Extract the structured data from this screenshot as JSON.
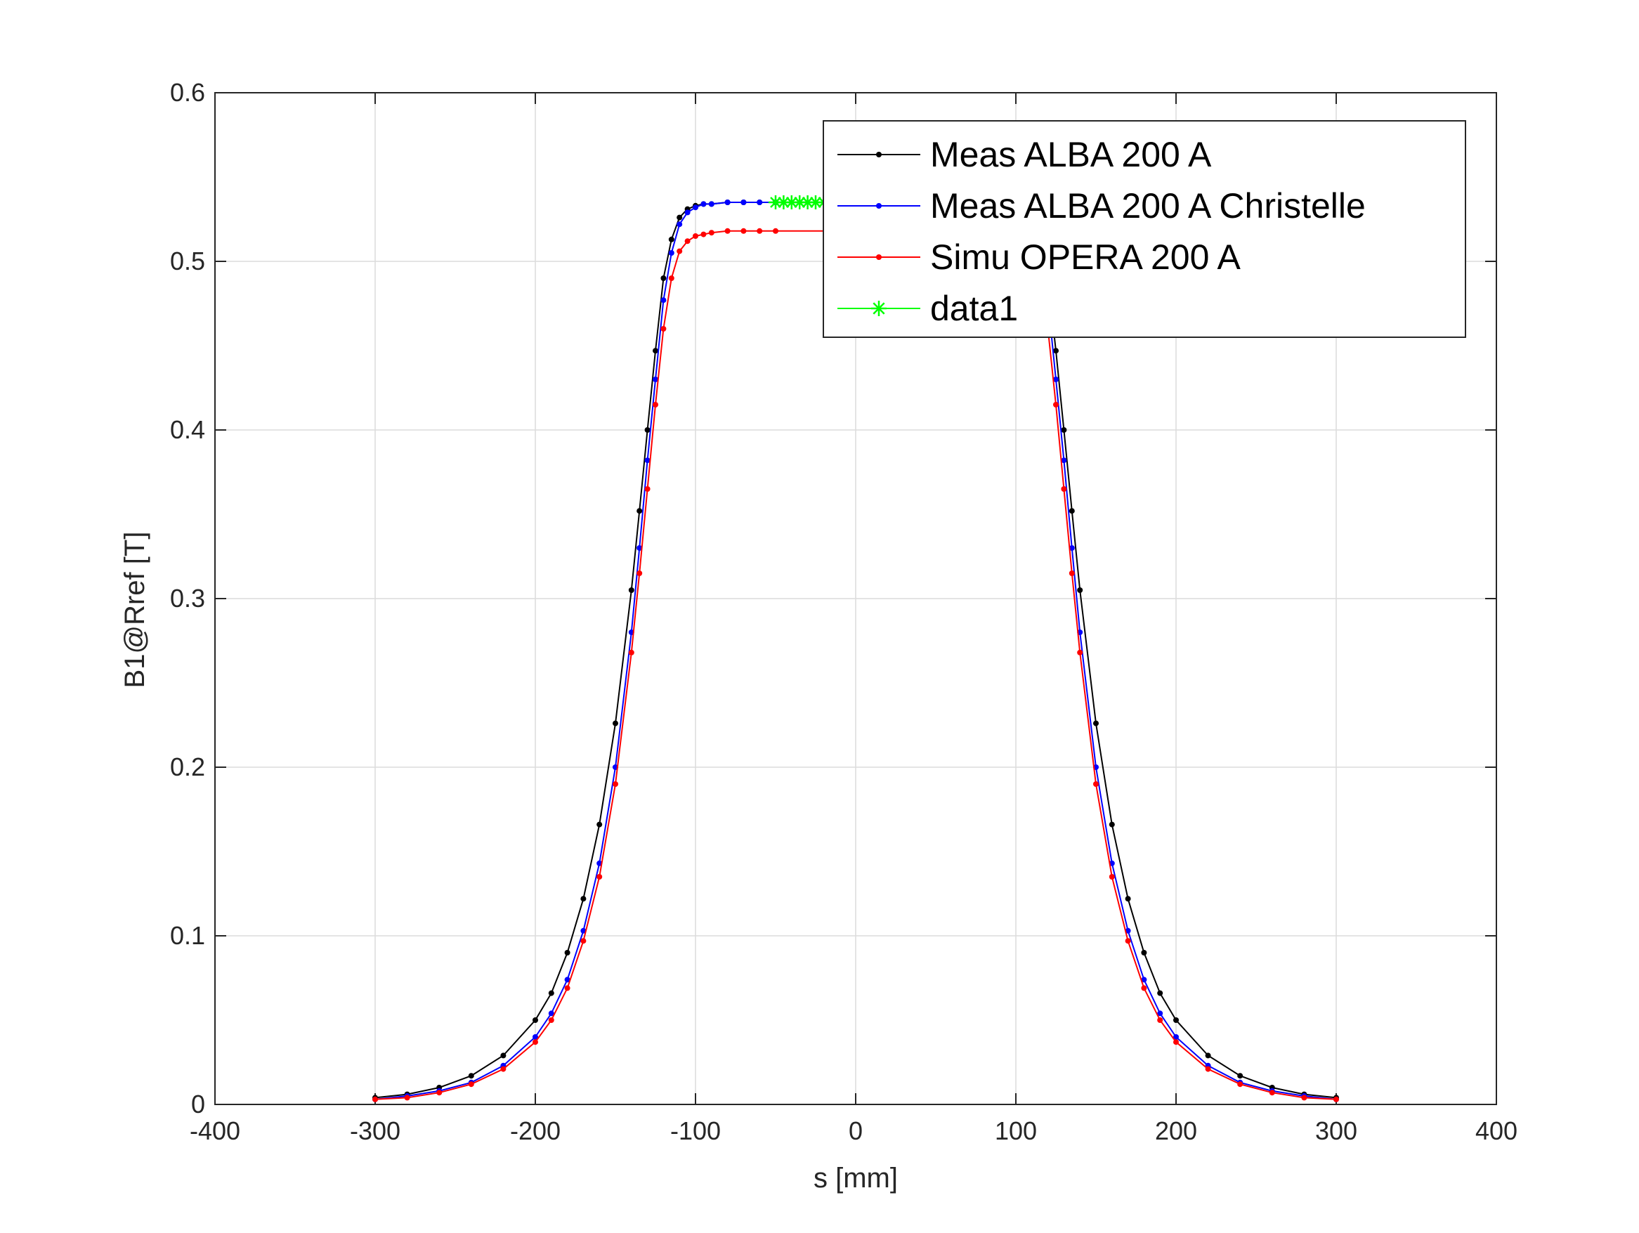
{
  "chart_data": {
    "type": "line",
    "title": "",
    "xlabel": "s [mm]",
    "ylabel": "B1@Rref [T]",
    "xlim": [
      -400,
      400
    ],
    "ylim": [
      0,
      0.6
    ],
    "xticks": [
      -400,
      -300,
      -200,
      -100,
      0,
      100,
      200,
      300,
      400
    ],
    "yticks": [
      0,
      0.1,
      0.2,
      0.3,
      0.4,
      0.5,
      0.6
    ],
    "xtick_labels": [
      "-400",
      "-300",
      "-200",
      "-100",
      "0",
      "100",
      "200",
      "300",
      "400"
    ],
    "ytick_labels": [
      "0",
      "0.1",
      "0.2",
      "0.3",
      "0.4",
      "0.5",
      "0.6"
    ],
    "grid": true,
    "legend_position": "top-right",
    "series": [
      {
        "name": "Meas ALBA 200 A",
        "color": "#000000",
        "marker": "dot",
        "x": [
          -300,
          -280,
          -260,
          -240,
          -220,
          -200,
          -190,
          -180,
          -170,
          -160,
          -150,
          -140,
          -135,
          -130,
          -125,
          -120,
          -115,
          -110,
          -105,
          -100,
          -95,
          -90,
          -80,
          -70,
          -60,
          -50,
          50,
          60,
          70,
          80,
          90,
          95,
          100,
          105,
          110,
          115,
          120,
          125,
          130,
          135,
          140,
          150,
          160,
          170,
          180,
          190,
          200,
          220,
          240,
          260,
          280,
          300
        ],
        "y": [
          0.004,
          0.006,
          0.01,
          0.017,
          0.029,
          0.05,
          0.066,
          0.09,
          0.122,
          0.166,
          0.226,
          0.305,
          0.352,
          0.4,
          0.447,
          0.49,
          0.513,
          0.526,
          0.531,
          0.533,
          0.534,
          0.534,
          0.535,
          0.535,
          0.535,
          0.535,
          0.535,
          0.535,
          0.535,
          0.535,
          0.534,
          0.534,
          0.533,
          0.531,
          0.526,
          0.513,
          0.49,
          0.447,
          0.4,
          0.352,
          0.305,
          0.226,
          0.166,
          0.122,
          0.09,
          0.066,
          0.05,
          0.029,
          0.017,
          0.01,
          0.006,
          0.004
        ]
      },
      {
        "name": "Meas ALBA 200 A Christelle",
        "color": "#0000ff",
        "marker": "dot",
        "x": [
          -300,
          -280,
          -260,
          -240,
          -220,
          -200,
          -190,
          -180,
          -170,
          -160,
          -150,
          -140,
          -135,
          -130,
          -125,
          -120,
          -115,
          -110,
          -105,
          -100,
          -95,
          -90,
          -80,
          -70,
          -60,
          -50,
          50,
          60,
          70,
          80,
          90,
          95,
          100,
          105,
          110,
          115,
          120,
          125,
          130,
          135,
          140,
          150,
          160,
          170,
          180,
          190,
          200,
          220,
          240,
          260,
          280,
          300
        ],
        "y": [
          0.003,
          0.005,
          0.008,
          0.013,
          0.023,
          0.04,
          0.054,
          0.074,
          0.103,
          0.143,
          0.2,
          0.28,
          0.33,
          0.382,
          0.43,
          0.477,
          0.505,
          0.522,
          0.529,
          0.532,
          0.534,
          0.534,
          0.535,
          0.535,
          0.535,
          0.535,
          0.535,
          0.535,
          0.535,
          0.535,
          0.534,
          0.534,
          0.532,
          0.529,
          0.522,
          0.505,
          0.477,
          0.43,
          0.382,
          0.33,
          0.28,
          0.2,
          0.143,
          0.103,
          0.074,
          0.054,
          0.04,
          0.023,
          0.013,
          0.008,
          0.005,
          0.003
        ]
      },
      {
        "name": "Simu OPERA 200 A",
        "color": "#ff0000",
        "marker": "dot",
        "x": [
          -300,
          -280,
          -260,
          -240,
          -220,
          -200,
          -190,
          -180,
          -170,
          -160,
          -150,
          -140,
          -135,
          -130,
          -125,
          -120,
          -115,
          -110,
          -105,
          -100,
          -95,
          -90,
          -80,
          -70,
          -60,
          -50,
          50,
          60,
          70,
          80,
          90,
          95,
          100,
          105,
          110,
          115,
          120,
          125,
          130,
          135,
          140,
          150,
          160,
          170,
          180,
          190,
          200,
          220,
          240,
          260,
          280,
          300
        ],
        "y": [
          0.003,
          0.004,
          0.007,
          0.012,
          0.021,
          0.037,
          0.05,
          0.069,
          0.097,
          0.135,
          0.19,
          0.268,
          0.315,
          0.365,
          0.415,
          0.46,
          0.49,
          0.506,
          0.512,
          0.515,
          0.516,
          0.517,
          0.518,
          0.518,
          0.518,
          0.518,
          0.518,
          0.518,
          0.518,
          0.518,
          0.517,
          0.516,
          0.515,
          0.512,
          0.506,
          0.49,
          0.46,
          0.415,
          0.365,
          0.315,
          0.268,
          0.19,
          0.135,
          0.097,
          0.069,
          0.05,
          0.037,
          0.021,
          0.012,
          0.007,
          0.004,
          0.003
        ]
      },
      {
        "name": "data1",
        "color": "#00ff00",
        "marker": "asterisk",
        "x": [
          -50,
          -45,
          -40,
          -35,
          -30,
          -25,
          -20,
          -15,
          -10,
          -5
        ],
        "y": [
          0.535,
          0.535,
          0.535,
          0.535,
          0.535,
          0.535,
          0.535,
          0.535,
          0.535,
          0.535
        ]
      }
    ]
  }
}
